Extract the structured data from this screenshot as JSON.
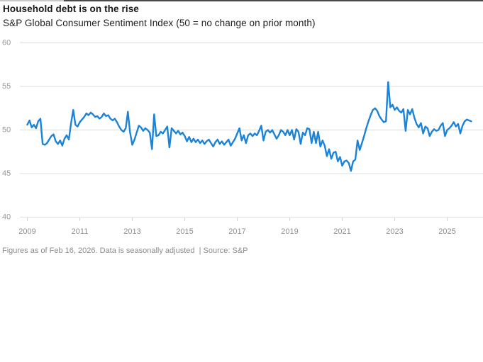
{
  "header": {
    "title": "Household debt is on the rise",
    "subtitle": "S&P Global Consumer Sentiment Index (50 = no change on prior month)"
  },
  "footnote": "Figures as of Feb 16, 2026. Data is seasonally adjusted  | Source: S&P",
  "colors": {
    "line": "#1b83d8",
    "grid": "#dcdcdc",
    "axis_label": "#929292",
    "title": "#161616",
    "footnote": "#8b8b8b",
    "background": "#ffffff"
  },
  "chart_data": {
    "type": "line",
    "title": "Household debt is on the rise",
    "subtitle": "S&P Global Consumer Sentiment Index (50 = no change on prior month)",
    "source": "S&P",
    "as_of": "Feb 16, 2026",
    "xlabel": "",
    "ylabel": "",
    "x_start_year": 2009,
    "frequency": "monthly",
    "x_ticks": [
      2009,
      2011,
      2013,
      2015,
      2017,
      2019,
      2021,
      2023,
      2025
    ],
    "y_ticks": [
      40,
      45,
      50,
      55,
      60
    ],
    "ylim": [
      40,
      60
    ],
    "grid": "horizontal",
    "legend": "none",
    "series": [
      {
        "name": "S&P Global Consumer Sentiment Index",
        "start": "2009-01",
        "values": [
          50.6,
          51.1,
          50.3,
          50.6,
          50.2,
          51.0,
          51.3,
          48.4,
          48.3,
          48.5,
          48.9,
          49.3,
          49.5,
          48.7,
          48.4,
          48.8,
          48.2,
          49.0,
          49.4,
          48.9,
          50.8,
          52.3,
          50.6,
          50.4,
          50.9,
          51.2,
          51.5,
          51.9,
          51.7,
          52.0,
          51.8,
          51.5,
          51.6,
          51.3,
          51.5,
          51.9,
          51.6,
          51.7,
          51.3,
          51.1,
          51.3,
          50.9,
          50.4,
          50.0,
          49.8,
          50.2,
          52.1,
          49.7,
          48.3,
          48.9,
          49.7,
          50.5,
          50.3,
          49.9,
          50.2,
          50.0,
          49.7,
          47.8,
          51.8,
          49.3,
          49.4,
          49.8,
          49.6,
          50.0,
          50.4,
          48.0,
          50.2,
          49.9,
          49.6,
          49.9,
          49.5,
          49.7,
          49.3,
          48.7,
          49.2,
          48.6,
          49.0,
          48.6,
          48.9,
          48.5,
          48.8,
          48.4,
          48.7,
          48.9,
          48.5,
          48.1,
          48.6,
          48.9,
          48.4,
          48.7,
          48.3,
          48.6,
          48.9,
          48.2,
          48.6,
          49.0,
          49.6,
          50.2,
          48.8,
          49.4,
          48.5,
          49.4,
          49.6,
          49.3,
          49.6,
          49.4,
          49.9,
          50.5,
          48.8,
          49.8,
          50.0,
          49.7,
          50.0,
          49.5,
          49.0,
          49.4,
          50.0,
          49.8,
          49.4,
          50.0,
          49.4,
          50.0,
          48.9,
          50.1,
          49.8,
          48.4,
          49.7,
          49.4,
          50.2,
          50.1,
          48.5,
          49.8,
          48.5,
          49.8,
          48.1,
          48.8,
          48.2,
          47.0,
          47.8,
          46.7,
          47.4,
          47.5,
          46.4,
          46.9,
          45.9,
          46.4,
          46.5,
          46.2,
          45.3,
          46.4,
          46.6,
          48.8,
          47.7,
          48.5,
          49.3,
          50.2,
          51.0,
          51.7,
          52.3,
          52.5,
          52.2,
          51.6,
          51.2,
          50.9,
          51.0,
          55.5,
          52.6,
          52.9,
          52.3,
          52.6,
          52.2,
          52.0,
          52.4,
          49.9,
          52.3,
          51.8,
          52.4,
          51.4,
          50.7,
          50.3,
          50.8,
          49.6,
          50.4,
          50.2,
          49.3,
          49.8,
          50.1,
          49.9,
          50.0,
          50.5,
          50.8,
          49.3,
          50.0,
          50.2,
          50.5,
          50.9,
          50.4,
          50.7,
          49.6,
          50.5,
          51.0,
          51.2,
          51.1,
          51.0
        ]
      }
    ]
  }
}
